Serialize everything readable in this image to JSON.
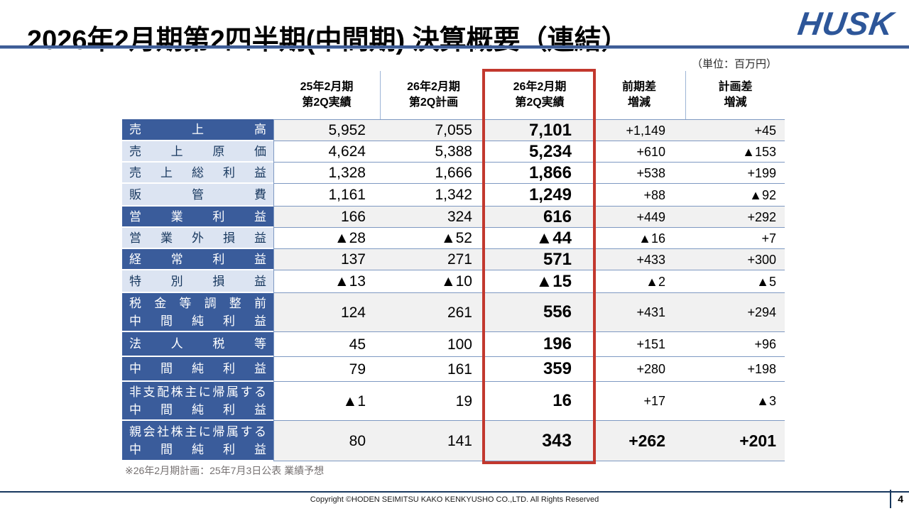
{
  "header": {
    "title": "2026年2月期第2四半期(中間期) 決算概要（連結）",
    "logo_text": "HUSK"
  },
  "table": {
    "unit_note": "（単位：百万円）",
    "columns": [
      {
        "line1": "25年2月期",
        "line2": "第2Q実績",
        "highlighted": false
      },
      {
        "line1": "26年2月期",
        "line2": "第2Q計画",
        "highlighted": false
      },
      {
        "line1": "26年2月期",
        "line2": "第2Q実績",
        "highlighted": true
      },
      {
        "line1": "前期差",
        "line2": "増減",
        "highlighted": false
      },
      {
        "line1": "計画差",
        "line2": "増減",
        "highlighted": false
      }
    ],
    "rows": [
      {
        "label_lines": [
          "売上高"
        ],
        "label_style": "dark",
        "shaded": true,
        "emphasis": false,
        "values": [
          "5,952",
          "7,055",
          "7,101",
          "+1,149",
          "+45"
        ]
      },
      {
        "label_lines": [
          "売上原価"
        ],
        "label_style": "light",
        "shaded": false,
        "emphasis": false,
        "values": [
          "4,624",
          "5,388",
          "5,234",
          "+610",
          "▲153"
        ]
      },
      {
        "label_lines": [
          "売上総利益"
        ],
        "label_style": "light",
        "shaded": false,
        "emphasis": false,
        "values": [
          "1,328",
          "1,666",
          "1,866",
          "+538",
          "+199"
        ]
      },
      {
        "label_lines": [
          "販管費"
        ],
        "label_style": "light",
        "shaded": false,
        "emphasis": false,
        "values": [
          "1,161",
          "1,342",
          "1,249",
          "+88",
          "▲92"
        ]
      },
      {
        "label_lines": [
          "営業利益"
        ],
        "label_style": "dark",
        "shaded": true,
        "emphasis": false,
        "values": [
          "166",
          "324",
          "616",
          "+449",
          "+292"
        ]
      },
      {
        "label_lines": [
          "営業外損益"
        ],
        "label_style": "light",
        "shaded": false,
        "emphasis": false,
        "values": [
          "▲28",
          "▲52",
          "▲44",
          "▲16",
          "+7"
        ]
      },
      {
        "label_lines": [
          "経常利益"
        ],
        "label_style": "dark",
        "shaded": true,
        "emphasis": false,
        "values": [
          "137",
          "271",
          "571",
          "+433",
          "+300"
        ]
      },
      {
        "label_lines": [
          "特別損益"
        ],
        "label_style": "light",
        "shaded": false,
        "emphasis": false,
        "values": [
          "▲13",
          "▲10",
          "▲15",
          "▲2",
          "▲5"
        ]
      },
      {
        "label_lines": [
          "税金等調整前",
          "中間純利益"
        ],
        "label_style": "dark",
        "shaded": true,
        "emphasis": false,
        "values": [
          "124",
          "261",
          "556",
          "+431",
          "+294"
        ]
      },
      {
        "label_lines": [
          "法人税等"
        ],
        "label_style": "dark",
        "shaded": false,
        "emphasis": false,
        "values": [
          "45",
          "100",
          "196",
          "+151",
          "+96"
        ]
      },
      {
        "label_lines": [
          "中間純利益"
        ],
        "label_style": "dark",
        "shaded": false,
        "emphasis": false,
        "values": [
          "79",
          "161",
          "359",
          "+280",
          "+198"
        ]
      },
      {
        "label_lines": [
          "非支配株主に帰属する",
          "中間純利益"
        ],
        "label_style": "dark",
        "shaded": false,
        "emphasis": false,
        "values": [
          "▲1",
          "19",
          "16",
          "+17",
          "▲3"
        ]
      },
      {
        "label_lines": [
          "親会社株主に帰属する",
          "中間純利益"
        ],
        "label_style": "dark",
        "shaded": true,
        "emphasis": true,
        "values": [
          "80",
          "141",
          "343",
          "+262",
          "+201"
        ]
      }
    ],
    "footnote": "※26年2月期計画：25年7月3日公表 業績予想"
  },
  "footer": {
    "copyright": "Copyright ©HODEN SEIMITSU KAKO KENKYUSHO CO.,LTD. All Rights Reserved",
    "page_number": "4"
  },
  "colors": {
    "label_dark_blue": "#3a5c9b",
    "label_light_blue": "#dce4f2",
    "label_dark_text": "#17375e",
    "row_line_blue": "#7e99c2",
    "shaded_row_bg": "#f1f1f1",
    "highlight_red": "#c2382e",
    "title_rule_blue": "#3e5c96",
    "logo_blue": "#2d5699"
  }
}
